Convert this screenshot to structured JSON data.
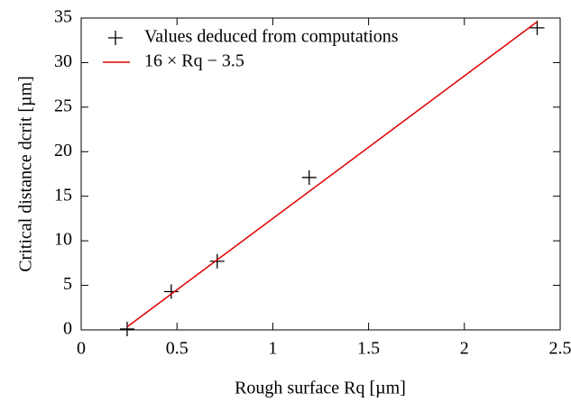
{
  "chart_data": {
    "type": "scatter",
    "xlabel": "Rough surface Rq [µm]",
    "ylabel": "Critical distance dcrit [µm]",
    "series": [
      {
        "name": "Values deduced from computations",
        "color": "#000000",
        "marker": "plus",
        "x": [
          0.24,
          0.47,
          0.71,
          1.19,
          2.38
        ],
        "values": [
          0.1,
          4.3,
          7.7,
          17.1,
          33.9
        ]
      },
      {
        "name": "16 × Rq − 3.5",
        "color": "#e00000",
        "marker": "line",
        "x": [
          0.24,
          2.38
        ],
        "values": [
          0.34,
          34.58
        ]
      }
    ],
    "xlim": [
      0,
      2.5
    ],
    "xticks": [
      0,
      0.5,
      1,
      1.5,
      2,
      2.5
    ],
    "ylim": [
      0,
      35
    ],
    "yticks": [
      0,
      5,
      10,
      15,
      20,
      25,
      30,
      35
    ],
    "grid": false,
    "legend": "upper left"
  }
}
